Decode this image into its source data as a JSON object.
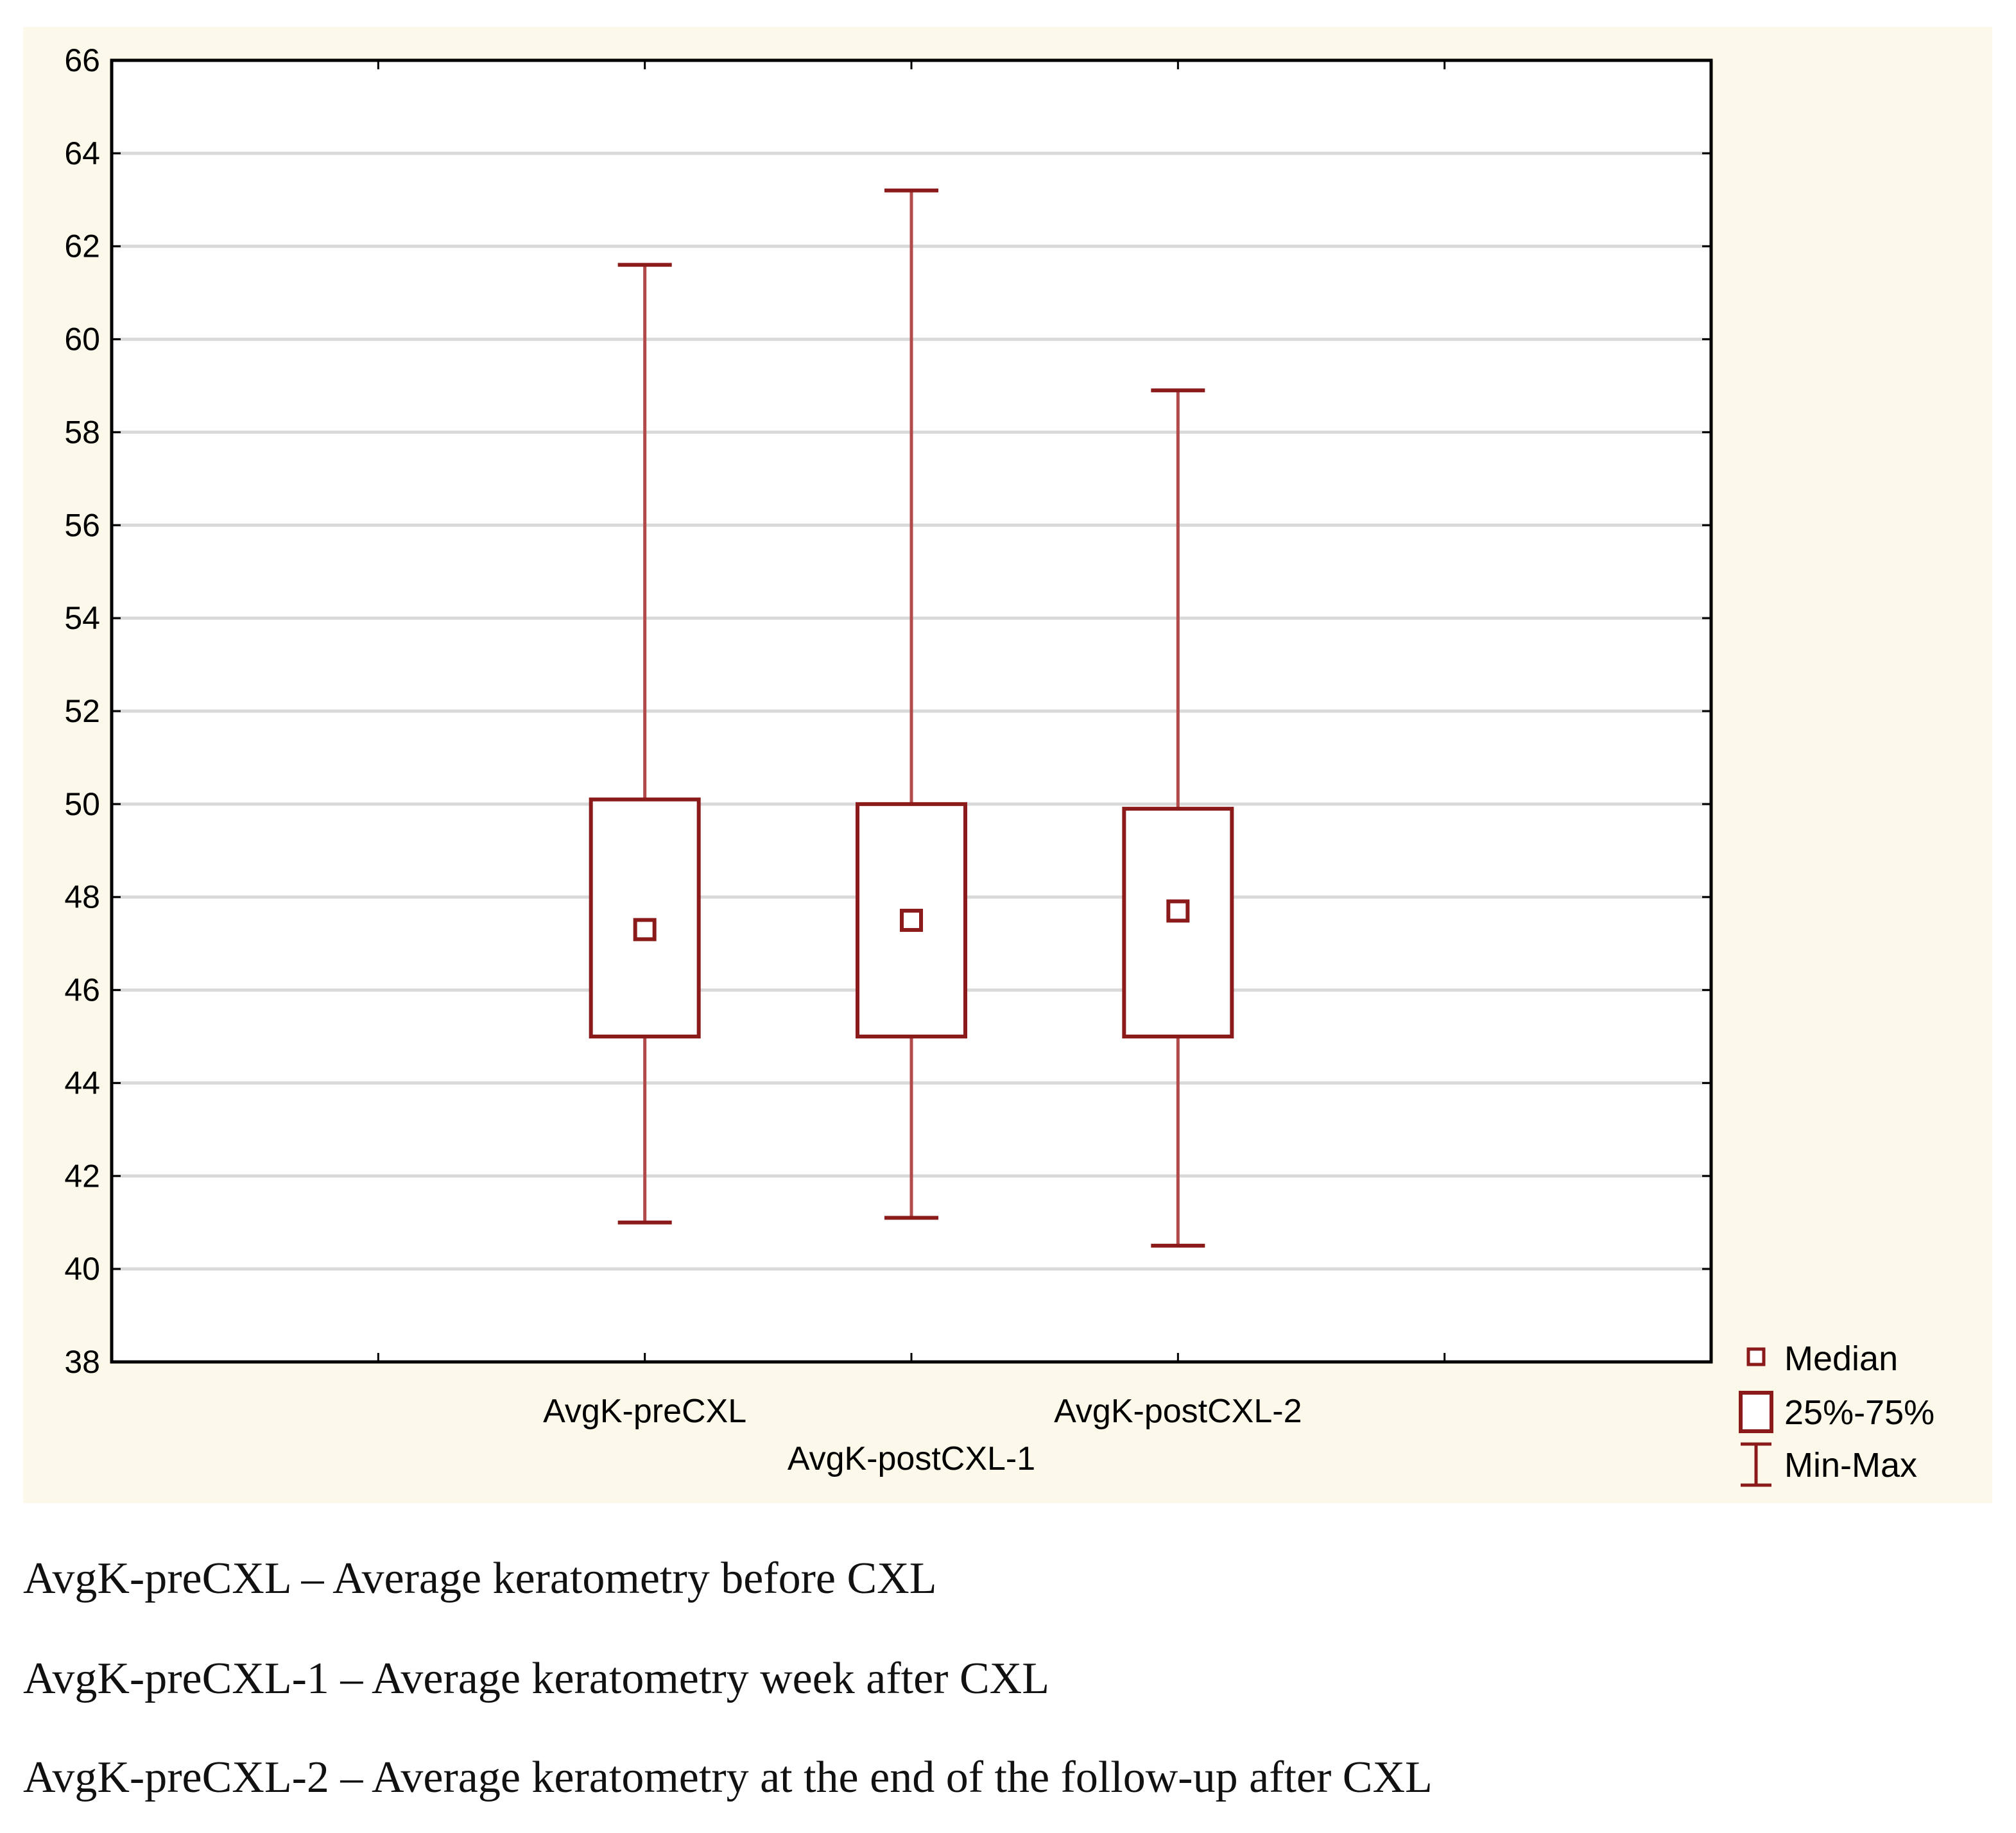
{
  "chart_data": {
    "type": "boxplot",
    "ylim": [
      38,
      66
    ],
    "yticks": [
      38,
      40,
      42,
      44,
      46,
      48,
      50,
      52,
      54,
      56,
      58,
      60,
      62,
      64,
      66
    ],
    "categories": [
      "AvgK-preCXL",
      "AvgK-postCXL-1",
      "AvgK-postCXL-2"
    ],
    "boxes": [
      {
        "category": "AvgK-preCXL",
        "min": 41.0,
        "q1": 45.0,
        "median": 47.3,
        "q3": 50.1,
        "max": 61.6
      },
      {
        "category": "AvgK-postCXL-1",
        "min": 41.1,
        "q1": 45.0,
        "median": 47.5,
        "q3": 50.0,
        "max": 63.2
      },
      {
        "category": "AvgK-postCXL-2",
        "min": 40.5,
        "q1": 45.0,
        "median": 47.7,
        "q3": 49.9,
        "max": 58.9
      }
    ],
    "legend": {
      "position": "bottom-right",
      "items": [
        {
          "symbol": "median",
          "label": "Median"
        },
        {
          "symbol": "box",
          "label": "25%-75%"
        },
        {
          "symbol": "whisker",
          "label": "Min-Max"
        }
      ]
    },
    "grid": true,
    "colors": {
      "box": "#8b1a1a",
      "whisker": "#b14a4a",
      "grid": "#d9d9d9",
      "background": "#fcf9ea"
    }
  },
  "notes": [
    "AvgK-preCXL – Average keratometry before CXL",
    "AvgK-preCXL-1  – Average keratometry week after CXL",
    "AvgK-preCXL-2 – Average keratometry at the end of the follow-up after CXL"
  ]
}
